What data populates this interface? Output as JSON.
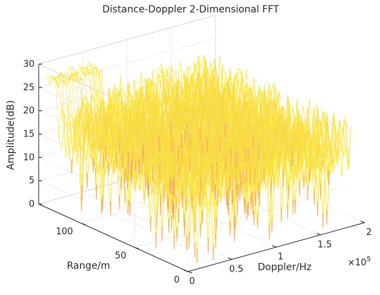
{
  "chart_data": {
    "type": "surface",
    "title": "Distance-Doppler 2-Dimensional FFT",
    "xlabel": "Doppler/Hz",
    "ylabel": "Range/m",
    "zlabel": "Amplitude(dB)",
    "x_exponent_label": "×10^5",
    "x_exponent_base": "×10",
    "x_exponent_power": "5",
    "xlim": [
      0,
      200000
    ],
    "ylim": [
      0,
      140
    ],
    "zlim": [
      0,
      30
    ],
    "x_ticks": [
      0,
      0.5,
      1,
      1.5,
      2
    ],
    "x_tick_labels": [
      "0",
      "0.5",
      "1",
      "1.5",
      "2"
    ],
    "y_ticks": [
      0,
      50,
      100
    ],
    "y_tick_labels": [
      "0",
      "50",
      "100"
    ],
    "z_ticks": [
      0,
      5,
      10,
      15,
      20,
      25,
      30
    ],
    "z_tick_labels": [
      "0",
      "5",
      "10",
      "15",
      "20",
      "25",
      "30"
    ],
    "grid": true,
    "colormap": [
      "#f4a07a",
      "#f9c96a",
      "#fff12e"
    ],
    "surface_summary": {
      "description_values": {
        "noise_floor_mean_db": 17,
        "noise_fluctuation_db": 8,
        "peak_range_m": 135,
        "peak_doppler_hz": [
          5000,
          60000
        ],
        "peak_amplitude_db": 28
      }
    }
  }
}
